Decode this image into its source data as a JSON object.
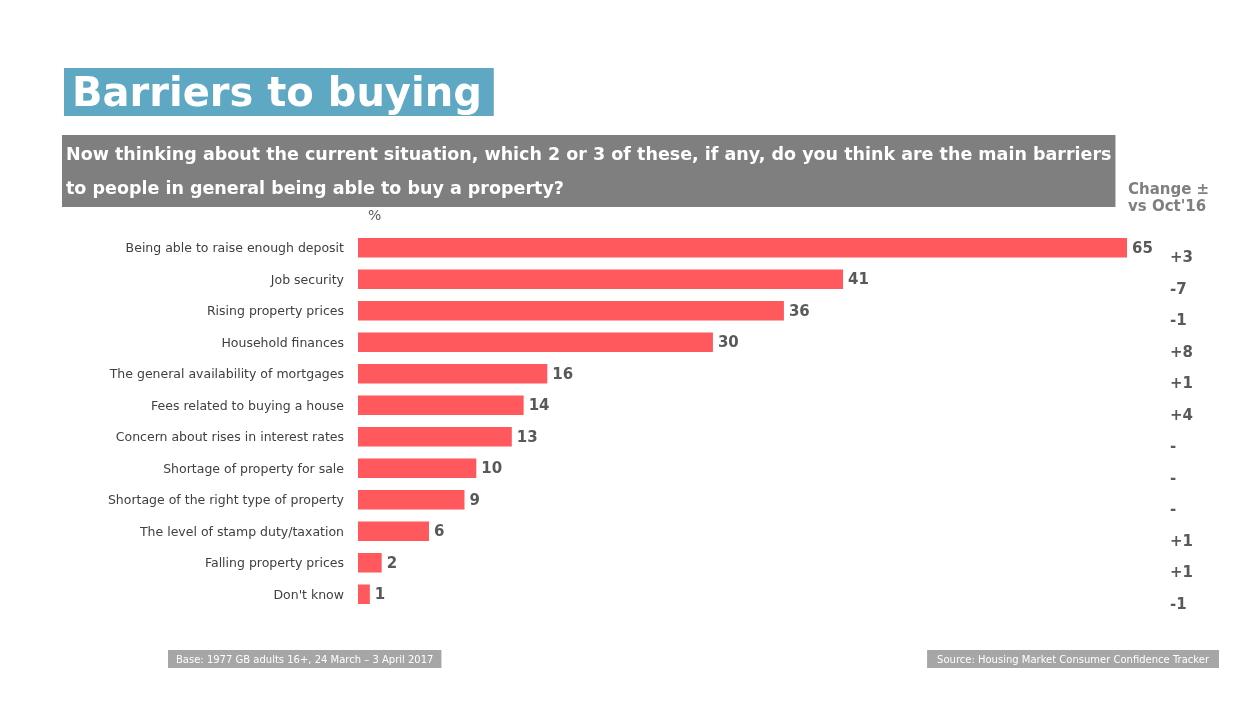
{
  "chart_data": {
    "type": "bar",
    "orientation": "horizontal",
    "title": "Barriers to buying",
    "subtitle": "Now thinking about the current situation, which 2 or 3 of these, if any, do you think are the main barriers\nto people in general being able to buy a property?",
    "xlabel": "%",
    "categories": [
      "Being able to raise enough deposit",
      "Job security",
      "Rising property prices",
      "Household finances",
      "The general availability of mortgages",
      "Fees related to buying a house",
      "Concern about rises in interest rates",
      "Shortage of property for sale",
      "Shortage of the right type of property",
      "The level of stamp duty/taxation",
      "Falling property prices",
      "Don't know"
    ],
    "values": [
      65,
      41,
      36,
      30,
      16,
      14,
      13,
      10,
      9,
      6,
      2,
      1
    ],
    "color": "#ff585d",
    "data_labels": true,
    "annotations": [
      "Change ± vs Oct'16",
      "+3",
      "-7",
      "-1",
      "+8",
      "+1",
      "+4",
      "-",
      "-",
      "-",
      "+1",
      "+1",
      "-1",
      "Base: 1977 GB adults 16+, 24 March – 3 April 2017",
      "Source: Housing Market Consumer Confidence Tracker"
    ]
  }
}
